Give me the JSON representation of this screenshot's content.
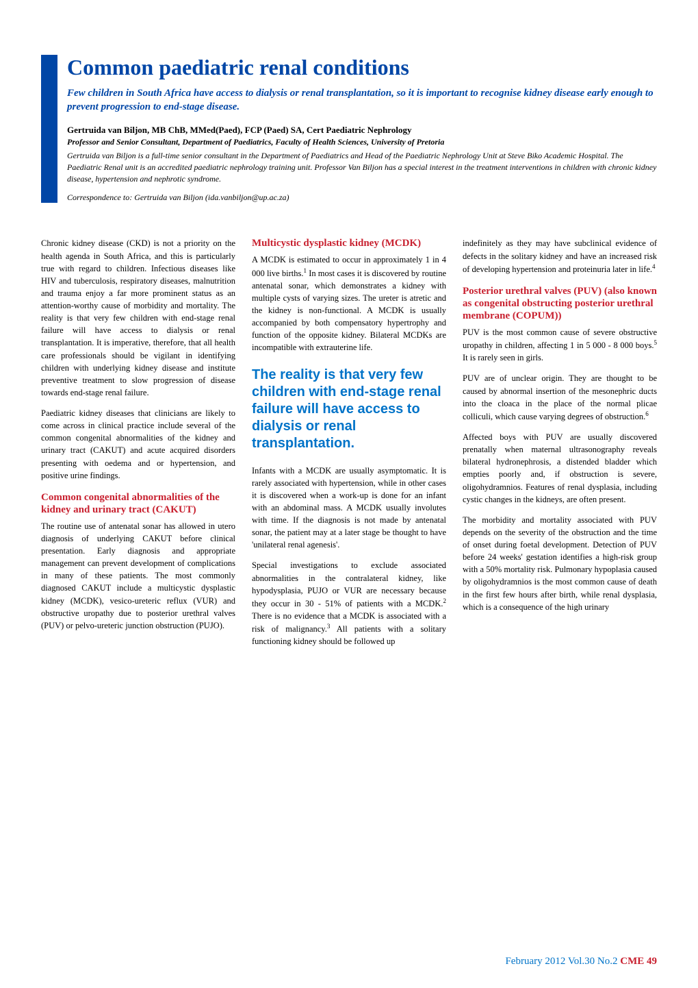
{
  "header": {
    "title": "Common paediatric renal conditions",
    "subtitle": "Few children in South Africa have access to dialysis or renal transplantation, so it is important to recognise kidney disease early enough to prevent progression to end-stage disease.",
    "author_name": "Gertruida van Biljon, MB ChB, MMed(Paed), FCP (Paed) SA, Cert Paediatric Nephrology",
    "author_title": "Professor and Senior Consultant, Department of Paediatrics, Faculty of Health Sciences, University of Pretoria",
    "author_bio": "Gertruida van Biljon is a full-time senior consultant in the Department of Paediatrics and Head of the Paediatric Nephrology Unit at Steve Biko Academic Hospital. The Paediatric Renal unit is an accredited paediatric nephrology training unit. Professor Van Biljon has a special interest in the treatment interventions in children with chronic kidney disease, hypertension and nephrotic syndrome.",
    "correspondence": "Correspondence to: Gertruida van Biljon (ida.vanbiljon@up.ac.za)"
  },
  "column1": {
    "para1": "Chronic kidney disease (CKD) is not a priority on the health agenda in South Africa, and this is particularly true with regard to children. Infectious diseases like HIV and tuberculosis, respiratory diseases, malnutrition and trauma enjoy a far more prominent status as an attention-worthy cause of morbidity and mortality. The reality is that very few children with end-stage renal failure will have access to dialysis or renal transplantation. It is imperative, therefore, that all health care professionals should be vigilant in identifying children with underlying kidney disease and institute preventive treatment to slow progression of disease towards end-stage renal failure.",
    "para2": "Paediatric kidney diseases that clinicians are likely to come across in clinical practice include several of the common congenital abnormalities of the kidney and urinary tract (CAKUT) and acute acquired disorders presenting with oedema and or hypertension, and positive urine findings.",
    "heading1": "Common congenital abnormalities of the kidney and urinary tract (CAKUT)",
    "para3": "The routine use of antenatal sonar has allowed in utero diagnosis of underlying CAKUT before clinical presentation. Early diagnosis and appropriate management can prevent development of complications in many of these patients. The most commonly diagnosed CAKUT include a multicystic dysplastic kidney (MCDK), vesico-ureteric reflux (VUR) and obstructive uropathy due to posterior urethral valves (PUV) or pelvo-ureteric junction obstruction (PUJO)."
  },
  "column2": {
    "heading1": "Multicystic dysplastic kidney (MCDK)",
    "para1_a": "A MCDK is estimated to occur in approximately 1 in 4 000 live births.",
    "para1_b": " In most cases it is discovered by routine antenatal sonar, which demonstrates a kidney with multiple cysts of varying sizes. The ureter is atretic and the kidney is non-functional. A MCDK is usually accompanied by both compensatory hypertrophy and function of the opposite kidney. Bilateral MCDKs are incompatible with extrauterine life.",
    "pullquote": "The reality is that very few children with end-stage renal failure will have access to dialysis or renal transplantation.",
    "para2": "Infants with a MCDK are usually asymptomatic. It is rarely associated with hypertension, while in other cases it is discovered when a work-up is done for an infant with an abdominal mass. A MCDK usually involutes with time. If the diagnosis is not made by antenatal sonar, the patient may at a later stage be thought to have 'unilateral renal agenesis'.",
    "para3_a": "Special investigations to exclude associated abnormalities in the contralateral kidney, like hypodysplasia, PUJO or VUR are necessary because they occur in 30 - 51% of patients with a MCDK.",
    "para3_b": " There is no evidence that a MCDK is associated with a risk of malignancy.",
    "para3_c": " All patients with a solitary functioning kidney should be followed up"
  },
  "column3": {
    "para1_a": "indefinitely as they may have subclinical evidence of defects in the solitary kidney and have an increased risk of developing hypertension and proteinuria later in life.",
    "heading1": "Posterior urethral valves (PUV) (also known as congenital obstructing posterior urethral membrane (COPUM))",
    "para2_a": "PUV is the most common cause of severe obstructive uropathy in children, affecting 1 in 5 000 - 8 000 boys.",
    "para2_b": " It is rarely seen in girls.",
    "para3_a": "PUV are of unclear origin. They are thought to be caused by abnormal insertion of the mesonephric ducts into the cloaca in the place of the normal plicae colliculi, which cause varying degrees of obstruction.",
    "para4": "Affected boys with PUV are usually discovered prenatally when maternal ultrasonography reveals bilateral hydronephrosis, a distended bladder which empties poorly and, if obstruction is severe, oligohydramnios. Features of renal dysplasia, including cystic changes in the kidneys, are often present.",
    "para5": "The morbidity and mortality associated with PUV depends on the severity of the obstruction and the time of onset during foetal development. Detection of PUV before 24 weeks' gestation identifies a high-risk group with a 50% mortality risk. Pulmonary hypoplasia caused by oligohydramnios is the most common cause of death in the first few hours after birth, while renal dysplasia, which is a consequence of the high urinary"
  },
  "footer": {
    "date": "February 2012  Vol.30 No.2",
    "cme": "CME",
    "page": "49"
  },
  "refs": {
    "r1": "1",
    "r2": "2",
    "r3": "3",
    "r4": "4",
    "r5": "5",
    "r6": "6"
  }
}
